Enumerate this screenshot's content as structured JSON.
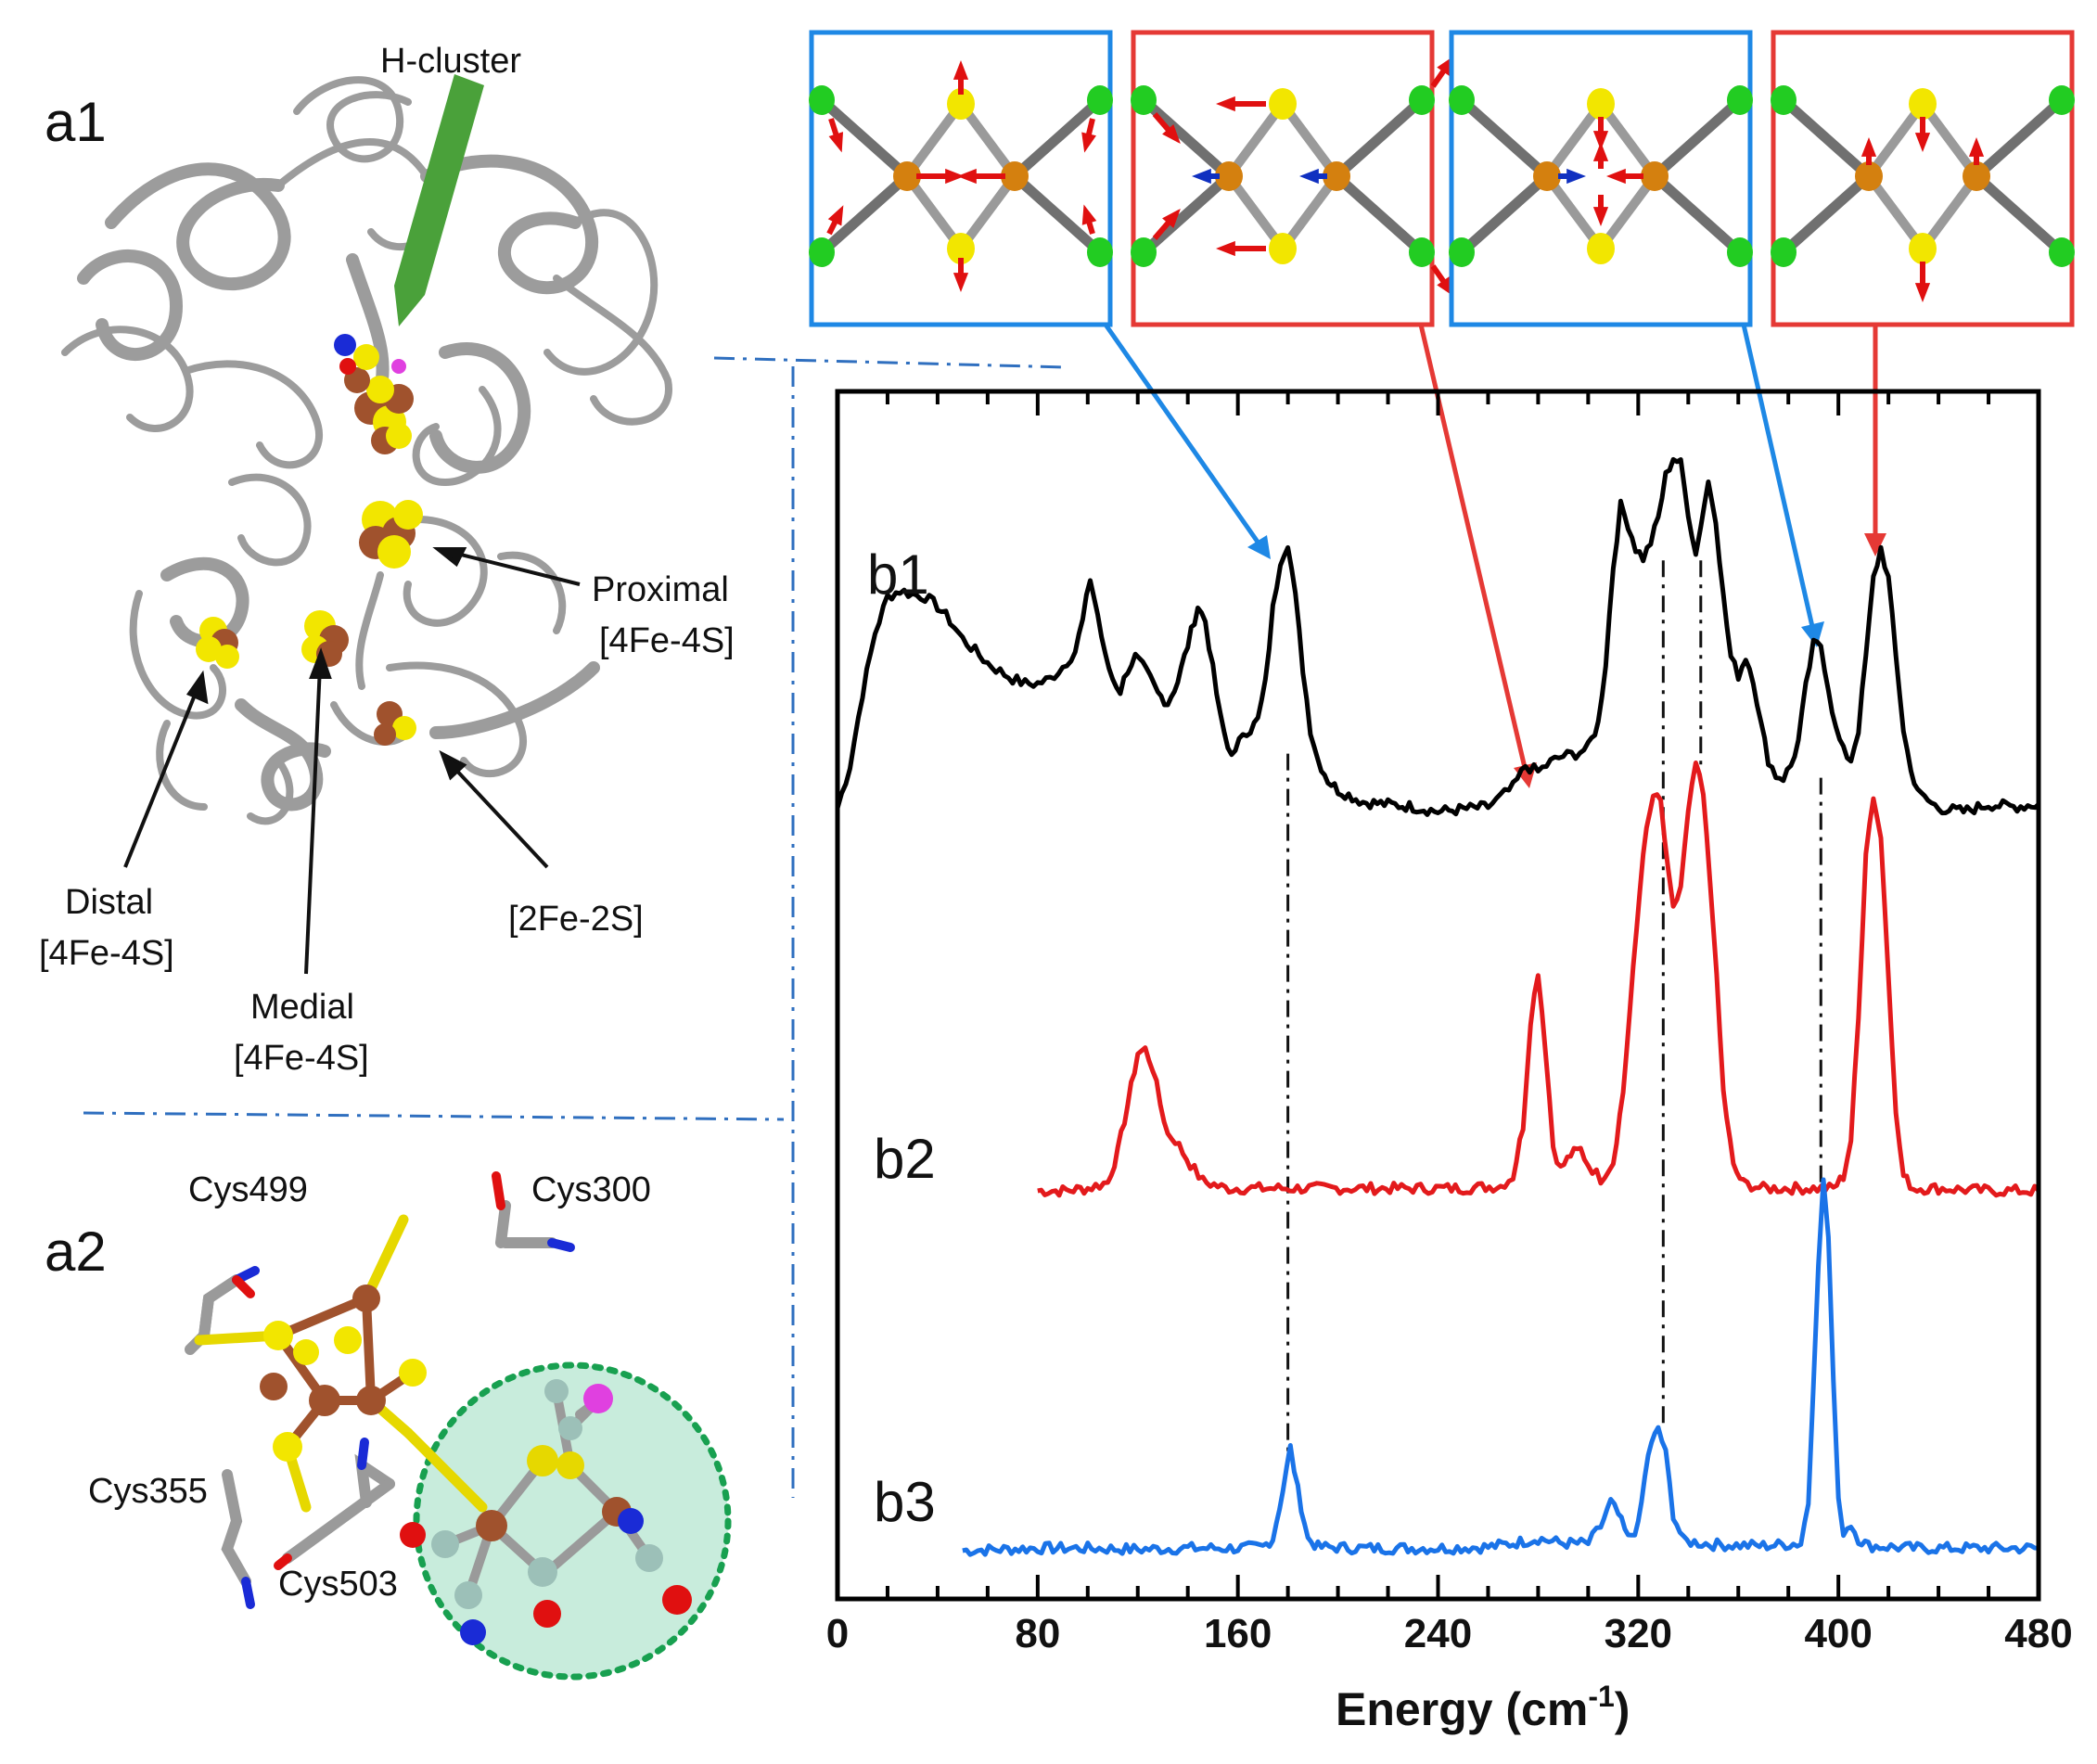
{
  "panels": {
    "a1": "a1",
    "a2": "a2",
    "b1": "b1",
    "b2": "b2",
    "b3": "b3"
  },
  "annotations": {
    "h_cluster": "H-cluster",
    "proximal_line1": "Proximal",
    "proximal_line2": "[4Fe-4S]",
    "distal_line1": "Distal",
    "distal_line2": "[4Fe-4S]",
    "medial_line1": "Medial",
    "medial_line2": "[4Fe-4S]",
    "fe2s2": "[2Fe-2S]"
  },
  "residues": [
    "Cys499",
    "Cys300",
    "Cys355",
    "Cys503"
  ],
  "colors": {
    "b1": "#000000",
    "b2": "#e31a1c",
    "b3": "#1a73e8",
    "box_blue": "#1e88e5",
    "box_red": "#e53935",
    "fe": "#d4800f",
    "s": "#f2e600",
    "ligand": "#22cc22",
    "arrow_red": "#e01010",
    "arrow_blue": "#1030c0",
    "highlight": "#c8ecdc",
    "dotted": "#18a050",
    "rod": "#9a9a9a",
    "divider": "#2f6fbf"
  },
  "mode_boxes": [
    {
      "border": "blue",
      "peak_cm1": 180
    },
    {
      "border": "red",
      "peak_cm1": 277
    },
    {
      "border": "blue",
      "peak_cm1": 392
    },
    {
      "border": "red",
      "peak_cm1": 417
    }
  ],
  "chart_data": {
    "type": "line",
    "xlabel_main": "Energy (cm",
    "xlabel_sup": "-1",
    "xlabel_close": ")",
    "xlim": [
      0,
      480
    ],
    "xticks": [
      0,
      80,
      160,
      240,
      320,
      400,
      480
    ],
    "minor_step": 20,
    "ylim": [
      0,
      1
    ],
    "yticks_visible": false,
    "series": [
      {
        "label": "b1",
        "color": "#000000",
        "offset": 0.64,
        "points": [
          [
            0,
            0.655
          ],
          [
            5,
            0.69
          ],
          [
            10,
            0.75
          ],
          [
            15,
            0.8
          ],
          [
            20,
            0.83
          ],
          [
            25,
            0.835
          ],
          [
            30,
            0.832
          ],
          [
            35,
            0.83
          ],
          [
            40,
            0.822
          ],
          [
            45,
            0.81
          ],
          [
            50,
            0.795
          ],
          [
            55,
            0.785
          ],
          [
            60,
            0.775
          ],
          [
            65,
            0.768
          ],
          [
            70,
            0.762
          ],
          [
            75,
            0.758
          ],
          [
            80,
            0.758
          ],
          [
            85,
            0.762
          ],
          [
            90,
            0.772
          ],
          [
            95,
            0.785
          ],
          [
            98,
            0.81
          ],
          [
            101,
            0.845
          ],
          [
            104,
            0.815
          ],
          [
            107,
            0.78
          ],
          [
            110,
            0.762
          ],
          [
            113,
            0.752
          ],
          [
            116,
            0.77
          ],
          [
            119,
            0.78
          ],
          [
            122,
            0.772
          ],
          [
            125,
            0.762
          ],
          [
            128,
            0.75
          ],
          [
            132,
            0.742
          ],
          [
            136,
            0.76
          ],
          [
            140,
            0.79
          ],
          [
            144,
            0.822
          ],
          [
            147,
            0.81
          ],
          [
            150,
            0.77
          ],
          [
            153,
            0.73
          ],
          [
            156,
            0.705
          ],
          [
            159,
            0.7
          ],
          [
            162,
            0.718
          ],
          [
            165,
            0.72
          ],
          [
            168,
            0.728
          ],
          [
            171,
            0.758
          ],
          [
            174,
            0.82
          ],
          [
            177,
            0.86
          ],
          [
            180,
            0.875
          ],
          [
            183,
            0.83
          ],
          [
            186,
            0.77
          ],
          [
            189,
            0.72
          ],
          [
            192,
            0.695
          ],
          [
            196,
            0.678
          ],
          [
            200,
            0.67
          ],
          [
            210,
            0.66
          ],
          [
            220,
            0.658
          ],
          [
            230,
            0.656
          ],
          [
            240,
            0.652
          ],
          [
            250,
            0.654
          ],
          [
            260,
            0.656
          ],
          [
            265,
            0.664
          ],
          [
            270,
            0.672
          ],
          [
            275,
            0.69
          ],
          [
            280,
            0.685
          ],
          [
            285,
            0.693
          ],
          [
            290,
            0.698
          ],
          [
            295,
            0.7
          ],
          [
            300,
            0.705
          ],
          [
            304,
            0.725
          ],
          [
            307,
            0.775
          ],
          [
            310,
            0.855
          ],
          [
            313,
            0.905
          ],
          [
            316,
            0.89
          ],
          [
            319,
            0.87
          ],
          [
            322,
            0.862
          ],
          [
            325,
            0.875
          ],
          [
            328,
            0.895
          ],
          [
            331,
            0.93
          ],
          [
            334,
            0.945
          ],
          [
            337,
            0.94
          ],
          [
            340,
            0.9
          ],
          [
            343,
            0.865
          ],
          [
            345,
            0.89
          ],
          [
            348,
            0.925
          ],
          [
            351,
            0.895
          ],
          [
            354,
            0.83
          ],
          [
            357,
            0.78
          ],
          [
            360,
            0.765
          ],
          [
            363,
            0.78
          ],
          [
            366,
            0.762
          ],
          [
            369,
            0.725
          ],
          [
            372,
            0.695
          ],
          [
            375,
            0.682
          ],
          [
            378,
            0.68
          ],
          [
            381,
            0.69
          ],
          [
            384,
            0.71
          ],
          [
            387,
            0.755
          ],
          [
            390,
            0.79
          ],
          [
            393,
            0.79
          ],
          [
            396,
            0.755
          ],
          [
            399,
            0.72
          ],
          [
            402,
            0.702
          ],
          [
            405,
            0.695
          ],
          [
            408,
            0.72
          ],
          [
            411,
            0.78
          ],
          [
            414,
            0.845
          ],
          [
            417,
            0.87
          ],
          [
            420,
            0.845
          ],
          [
            423,
            0.78
          ],
          [
            426,
            0.72
          ],
          [
            429,
            0.685
          ],
          [
            433,
            0.665
          ],
          [
            440,
            0.655
          ],
          [
            450,
            0.652
          ],
          [
            460,
            0.658
          ],
          [
            470,
            0.656
          ],
          [
            480,
            0.658
          ]
        ]
      },
      {
        "label": "b2",
        "color": "#e31a1c",
        "offset": 0.33,
        "points": [
          [
            80,
            0.338
          ],
          [
            90,
            0.338
          ],
          [
            100,
            0.34
          ],
          [
            108,
            0.345
          ],
          [
            112,
            0.37
          ],
          [
            116,
            0.41
          ],
          [
            120,
            0.452
          ],
          [
            123,
            0.455
          ],
          [
            126,
            0.44
          ],
          [
            129,
            0.41
          ],
          [
            132,
            0.385
          ],
          [
            135,
            0.38
          ],
          [
            138,
            0.37
          ],
          [
            141,
            0.36
          ],
          [
            146,
            0.346
          ],
          [
            155,
            0.34
          ],
          [
            170,
            0.34
          ],
          [
            190,
            0.34
          ],
          [
            210,
            0.34
          ],
          [
            230,
            0.34
          ],
          [
            250,
            0.34
          ],
          [
            265,
            0.342
          ],
          [
            270,
            0.35
          ],
          [
            274,
            0.392
          ],
          [
            277,
            0.48
          ],
          [
            280,
            0.52
          ],
          [
            283,
            0.455
          ],
          [
            286,
            0.375
          ],
          [
            289,
            0.356
          ],
          [
            293,
            0.368
          ],
          [
            297,
            0.372
          ],
          [
            300,
            0.36
          ],
          [
            305,
            0.348
          ],
          [
            310,
            0.362
          ],
          [
            314,
            0.42
          ],
          [
            318,
            0.52
          ],
          [
            322,
            0.62
          ],
          [
            326,
            0.665
          ],
          [
            329,
            0.66
          ],
          [
            332,
            0.6
          ],
          [
            334,
            0.57
          ],
          [
            337,
            0.59
          ],
          [
            340,
            0.65
          ],
          [
            343,
            0.692
          ],
          [
            346,
            0.665
          ],
          [
            350,
            0.56
          ],
          [
            354,
            0.42
          ],
          [
            358,
            0.358
          ],
          [
            362,
            0.344
          ],
          [
            370,
            0.34
          ],
          [
            380,
            0.34
          ],
          [
            390,
            0.34
          ],
          [
            398,
            0.34
          ],
          [
            402,
            0.35
          ],
          [
            405,
            0.38
          ],
          [
            408,
            0.48
          ],
          [
            411,
            0.62
          ],
          [
            414,
            0.665
          ],
          [
            417,
            0.63
          ],
          [
            420,
            0.52
          ],
          [
            423,
            0.4
          ],
          [
            426,
            0.35
          ],
          [
            430,
            0.34
          ],
          [
            440,
            0.34
          ],
          [
            460,
            0.338
          ],
          [
            480,
            0.338
          ]
        ]
      },
      {
        "label": "b3",
        "color": "#1a73e8",
        "offset": 0.0,
        "points": [
          [
            50,
            0.04
          ],
          [
            80,
            0.042
          ],
          [
            100,
            0.042
          ],
          [
            120,
            0.041
          ],
          [
            140,
            0.042
          ],
          [
            160,
            0.042
          ],
          [
            170,
            0.043
          ],
          [
            174,
            0.05
          ],
          [
            178,
            0.09
          ],
          [
            181,
            0.125
          ],
          [
            184,
            0.09
          ],
          [
            188,
            0.05
          ],
          [
            192,
            0.043
          ],
          [
            210,
            0.042
          ],
          [
            240,
            0.042
          ],
          [
            260,
            0.043
          ],
          [
            270,
            0.046
          ],
          [
            280,
            0.05
          ],
          [
            290,
            0.046
          ],
          [
            300,
            0.046
          ],
          [
            305,
            0.06
          ],
          [
            309,
            0.08
          ],
          [
            312,
            0.07
          ],
          [
            316,
            0.05
          ],
          [
            320,
            0.06
          ],
          [
            324,
            0.12
          ],
          [
            328,
            0.142
          ],
          [
            331,
            0.12
          ],
          [
            334,
            0.07
          ],
          [
            338,
            0.048
          ],
          [
            350,
            0.045
          ],
          [
            370,
            0.044
          ],
          [
            385,
            0.046
          ],
          [
            388,
            0.08
          ],
          [
            390,
            0.18
          ],
          [
            392,
            0.28
          ],
          [
            394,
            0.345
          ],
          [
            396,
            0.3
          ],
          [
            398,
            0.18
          ],
          [
            400,
            0.08
          ],
          [
            402,
            0.056
          ],
          [
            405,
            0.062
          ],
          [
            408,
            0.05
          ],
          [
            412,
            0.044
          ],
          [
            430,
            0.042
          ],
          [
            460,
            0.042
          ],
          [
            480,
            0.042
          ]
        ]
      }
    ],
    "dash_markers_cm1": [
      180,
      330,
      345,
      393
    ]
  }
}
